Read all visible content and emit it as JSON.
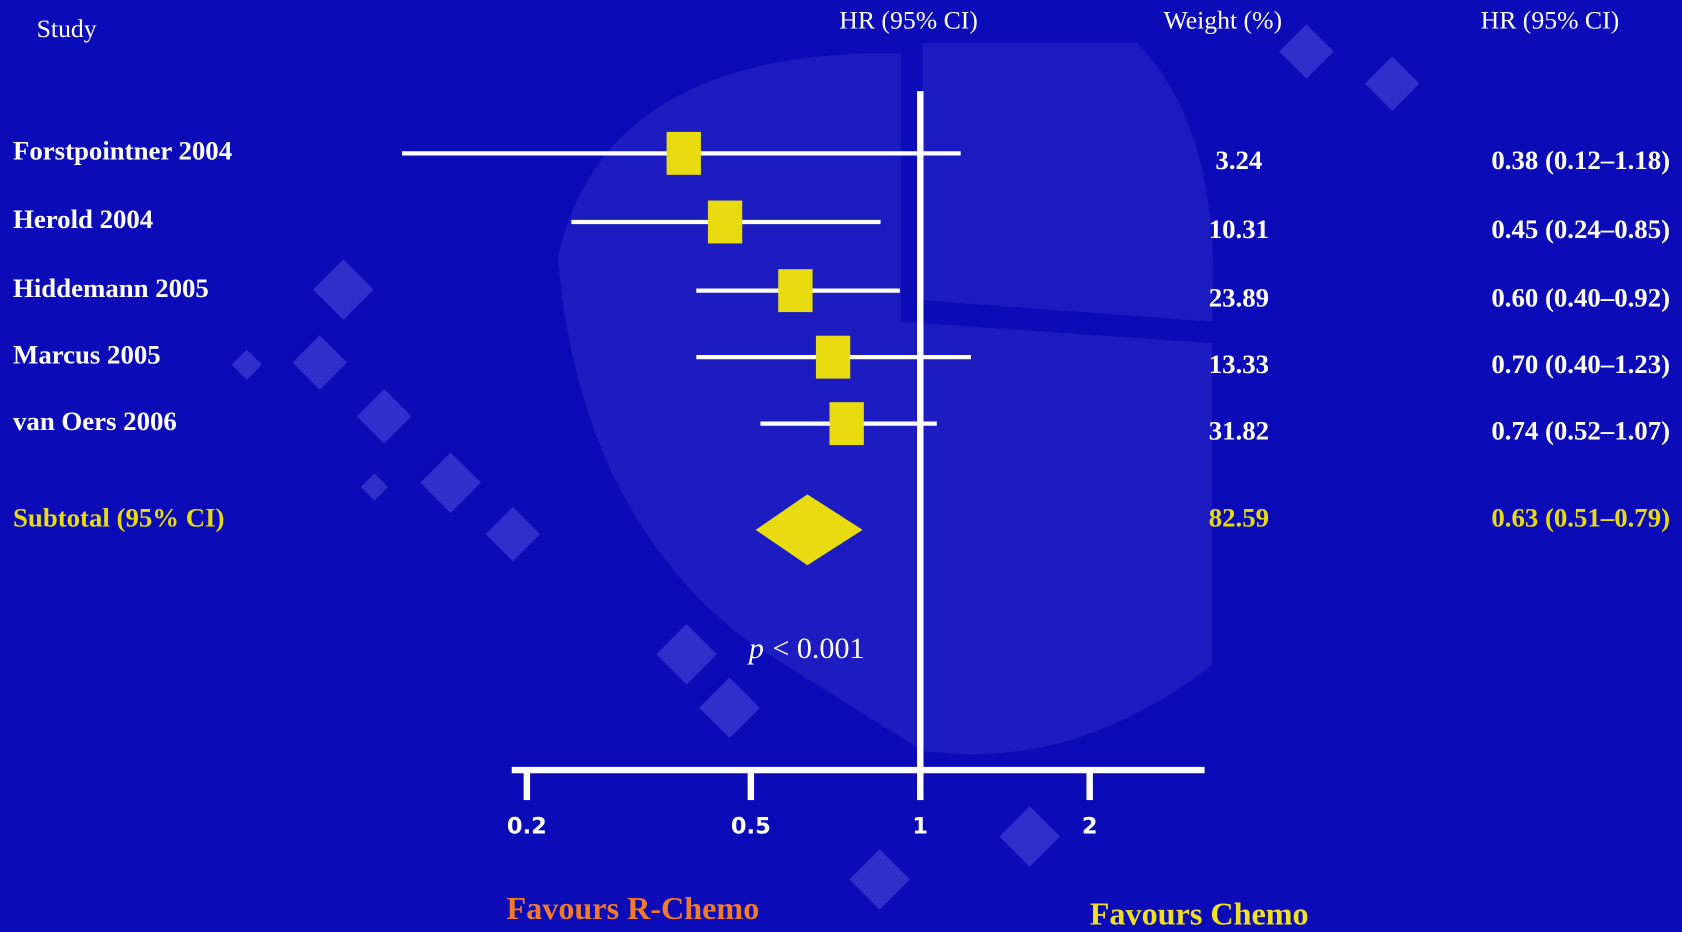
{
  "chart_data": {
    "type": "forest",
    "columns": [
      "Study",
      "HR (95% CI)",
      "Weight (%)",
      "HR (95% CI)"
    ],
    "studies": {
      "names": [
        "Forstpointner 2004",
        "Herold 2004",
        "Hiddemann 2005",
        "Marcus 2005",
        "van Oers 2006"
      ],
      "hr": [
        0.38,
        0.45,
        0.6,
        0.7,
        0.74
      ],
      "lower": [
        0.12,
        0.24,
        0.4,
        0.4,
        0.52
      ],
      "upper": [
        1.18,
        0.85,
        0.92,
        1.23,
        1.07
      ],
      "weights": [
        3.24,
        10.31,
        23.89,
        13.33,
        31.82
      ],
      "value_labels": [
        "0.38 (0.12–1.18)",
        "0.45 (0.24–0.85)",
        "0.60 (0.40–0.92)",
        "0.70 (0.40–1.23)",
        "0.74 (0.52–1.07)"
      ]
    },
    "subtotal": {
      "name": "Subtotal (95% CI)",
      "hr": 0.63,
      "lower": 0.51,
      "upper": 0.79,
      "weight": 82.59,
      "value_label": "0.63 (0.51–0.79)"
    },
    "p_symbol": "p",
    "p_text": "< 0.001",
    "reference": 1,
    "xlim": [
      0.188,
      3.2
    ],
    "xticks": [
      0.2,
      0.5,
      1,
      2
    ],
    "log_x": true,
    "marker_color": "#e8dc10",
    "left_label": "Favours R-Chemo",
    "right_label": "Favours Chemo"
  }
}
